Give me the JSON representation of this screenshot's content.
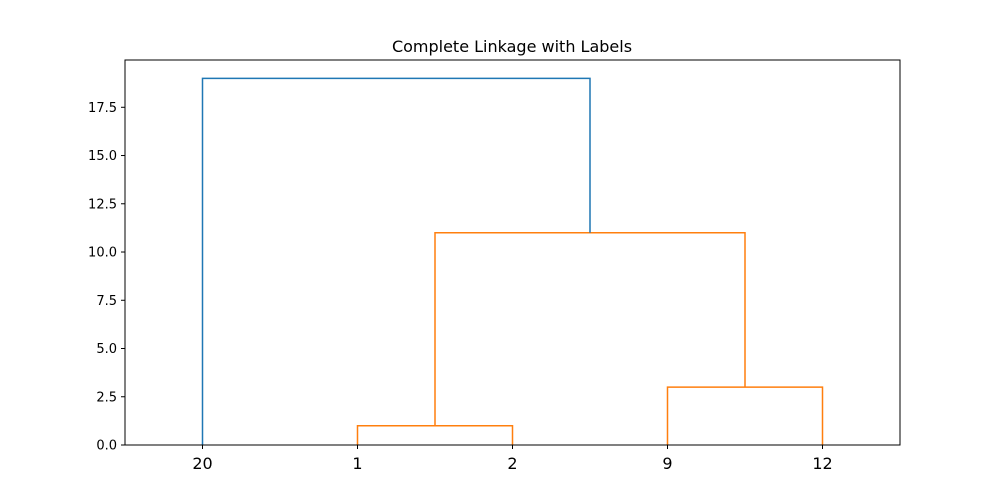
{
  "chart_data": {
    "type": "dendrogram",
    "title": "Complete Linkage with Labels",
    "xlabel": "",
    "ylabel": "",
    "leaves": [
      "20",
      "1",
      "2",
      "9",
      "12"
    ],
    "ylim": [
      0,
      19.95
    ],
    "yticks": [
      0.0,
      2.5,
      5.0,
      7.5,
      10.0,
      12.5,
      15.0,
      17.5
    ],
    "ytick_labels": [
      "0.0",
      "2.5",
      "5.0",
      "7.5",
      "10.0",
      "12.5",
      "15.0",
      "17.5"
    ],
    "grid": false,
    "merges": [
      {
        "left": "leaf:1",
        "right": "leaf:2",
        "height": 1.0,
        "color": "#ff7f0e"
      },
      {
        "left": "leaf:3",
        "right": "leaf:4",
        "height": 3.0,
        "color": "#ff7f0e"
      },
      {
        "left": "node:0",
        "right": "node:1",
        "height": 11.0,
        "color": "#ff7f0e"
      },
      {
        "left": "leaf:0",
        "right": "node:2",
        "height": 19.0,
        "color": "#1f77b4"
      }
    ]
  }
}
